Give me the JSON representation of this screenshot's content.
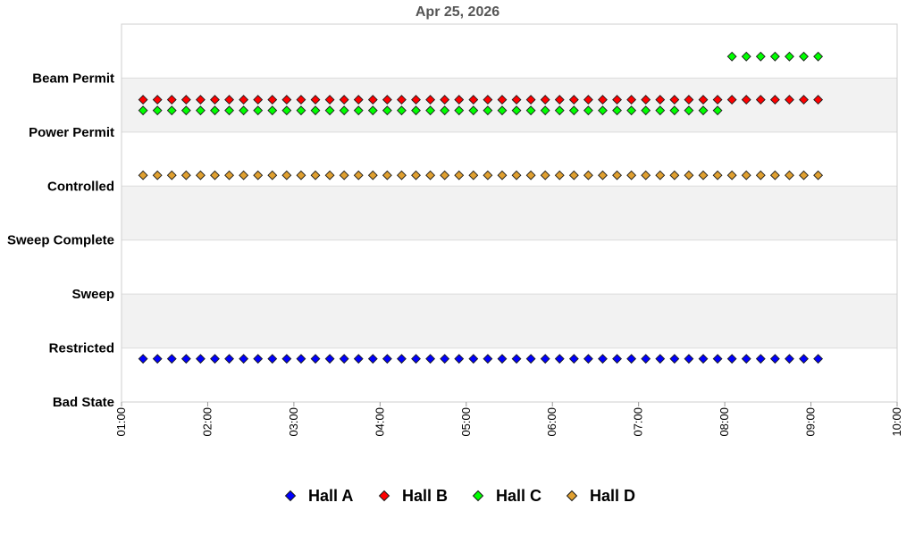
{
  "chart_data": {
    "type": "scatter",
    "title": "Apr 25, 2026",
    "y_categories": [
      "Bad State",
      "Restricted",
      "Sweep",
      "Sweep Complete",
      "Controlled",
      "Power Permit",
      "Beam Permit"
    ],
    "x_ticks": [
      "01:00",
      "02:00",
      "03:00",
      "04:00",
      "05:00",
      "06:00",
      "07:00",
      "08:00",
      "09:00",
      "10:00"
    ],
    "xlim": [
      "01:00",
      "10:00"
    ],
    "legend_position": "bottom",
    "grid": "alternating horizontal bands",
    "series": [
      {
        "name": "Hall A",
        "color": "#0000ff",
        "segments": [
          {
            "from": "01:15",
            "to": "09:05",
            "interval_minutes": 10,
            "state_level": 0.8
          }
        ]
      },
      {
        "name": "Hall B",
        "color": "#ff0000",
        "segments": [
          {
            "from": "01:15",
            "to": "09:05",
            "interval_minutes": 10,
            "state_level": 5.6
          }
        ]
      },
      {
        "name": "Hall C",
        "color": "#00ff00",
        "segments": [
          {
            "from": "01:15",
            "to": "07:55",
            "interval_minutes": 10,
            "state_level": 5.4
          },
          {
            "from": "08:05",
            "to": "09:05",
            "interval_minutes": 10,
            "state_level": 6.4
          }
        ]
      },
      {
        "name": "Hall D",
        "color": "#e0a030",
        "segments": [
          {
            "from": "01:15",
            "to": "09:05",
            "interval_minutes": 10,
            "state_level": 4.2
          }
        ]
      }
    ]
  }
}
